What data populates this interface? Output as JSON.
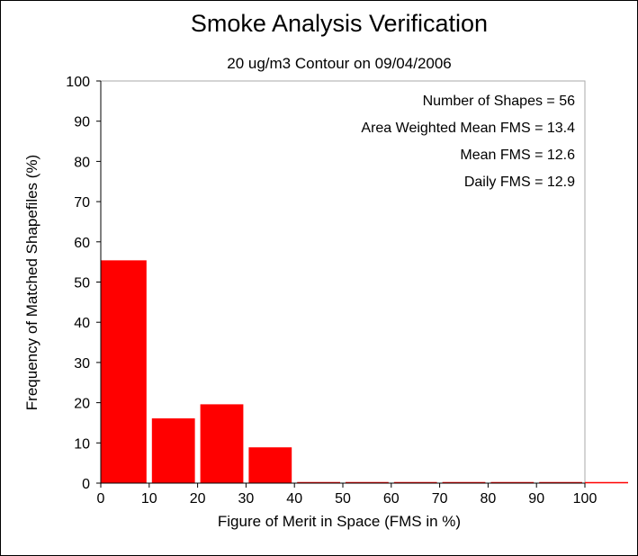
{
  "chart_data": {
    "type": "bar",
    "title": "Smoke Analysis Verification",
    "subtitle": "20 ug/m3 Contour on 09/04/2006",
    "xlabel": "Figure of Merit in Space (FMS in %)",
    "ylabel": "Frequency of Matched Shapefiles (%)",
    "xlim": [
      0,
      100
    ],
    "ylim": [
      0,
      100
    ],
    "x_ticks": [
      "0",
      "10",
      "20",
      "30",
      "40",
      "50",
      "60",
      "70",
      "80",
      "90",
      "100"
    ],
    "y_ticks": [
      "0",
      "10",
      "20",
      "30",
      "40",
      "50",
      "60",
      "70",
      "80",
      "90",
      "100"
    ],
    "bins": [
      {
        "from": 0,
        "to": 10,
        "value": 55.4
      },
      {
        "from": 10,
        "to": 20,
        "value": 16.1
      },
      {
        "from": 20,
        "to": 30,
        "value": 19.6
      },
      {
        "from": 30,
        "to": 40,
        "value": 8.9
      },
      {
        "from": 40,
        "to": 50,
        "value": 0
      },
      {
        "from": 50,
        "to": 60,
        "value": 0
      },
      {
        "from": 60,
        "to": 70,
        "value": 0
      },
      {
        "from": 70,
        "to": 80,
        "value": 0
      },
      {
        "from": 80,
        "to": 90,
        "value": 0
      },
      {
        "from": 90,
        "to": 100,
        "value": 0
      }
    ],
    "annotations": [
      "Number of Shapes = 56",
      "Area Weighted Mean FMS = 13.4",
      "Mean FMS = 12.6",
      "Daily FMS = 12.9"
    ],
    "bar_color": "#ff0000",
    "grid": false
  }
}
